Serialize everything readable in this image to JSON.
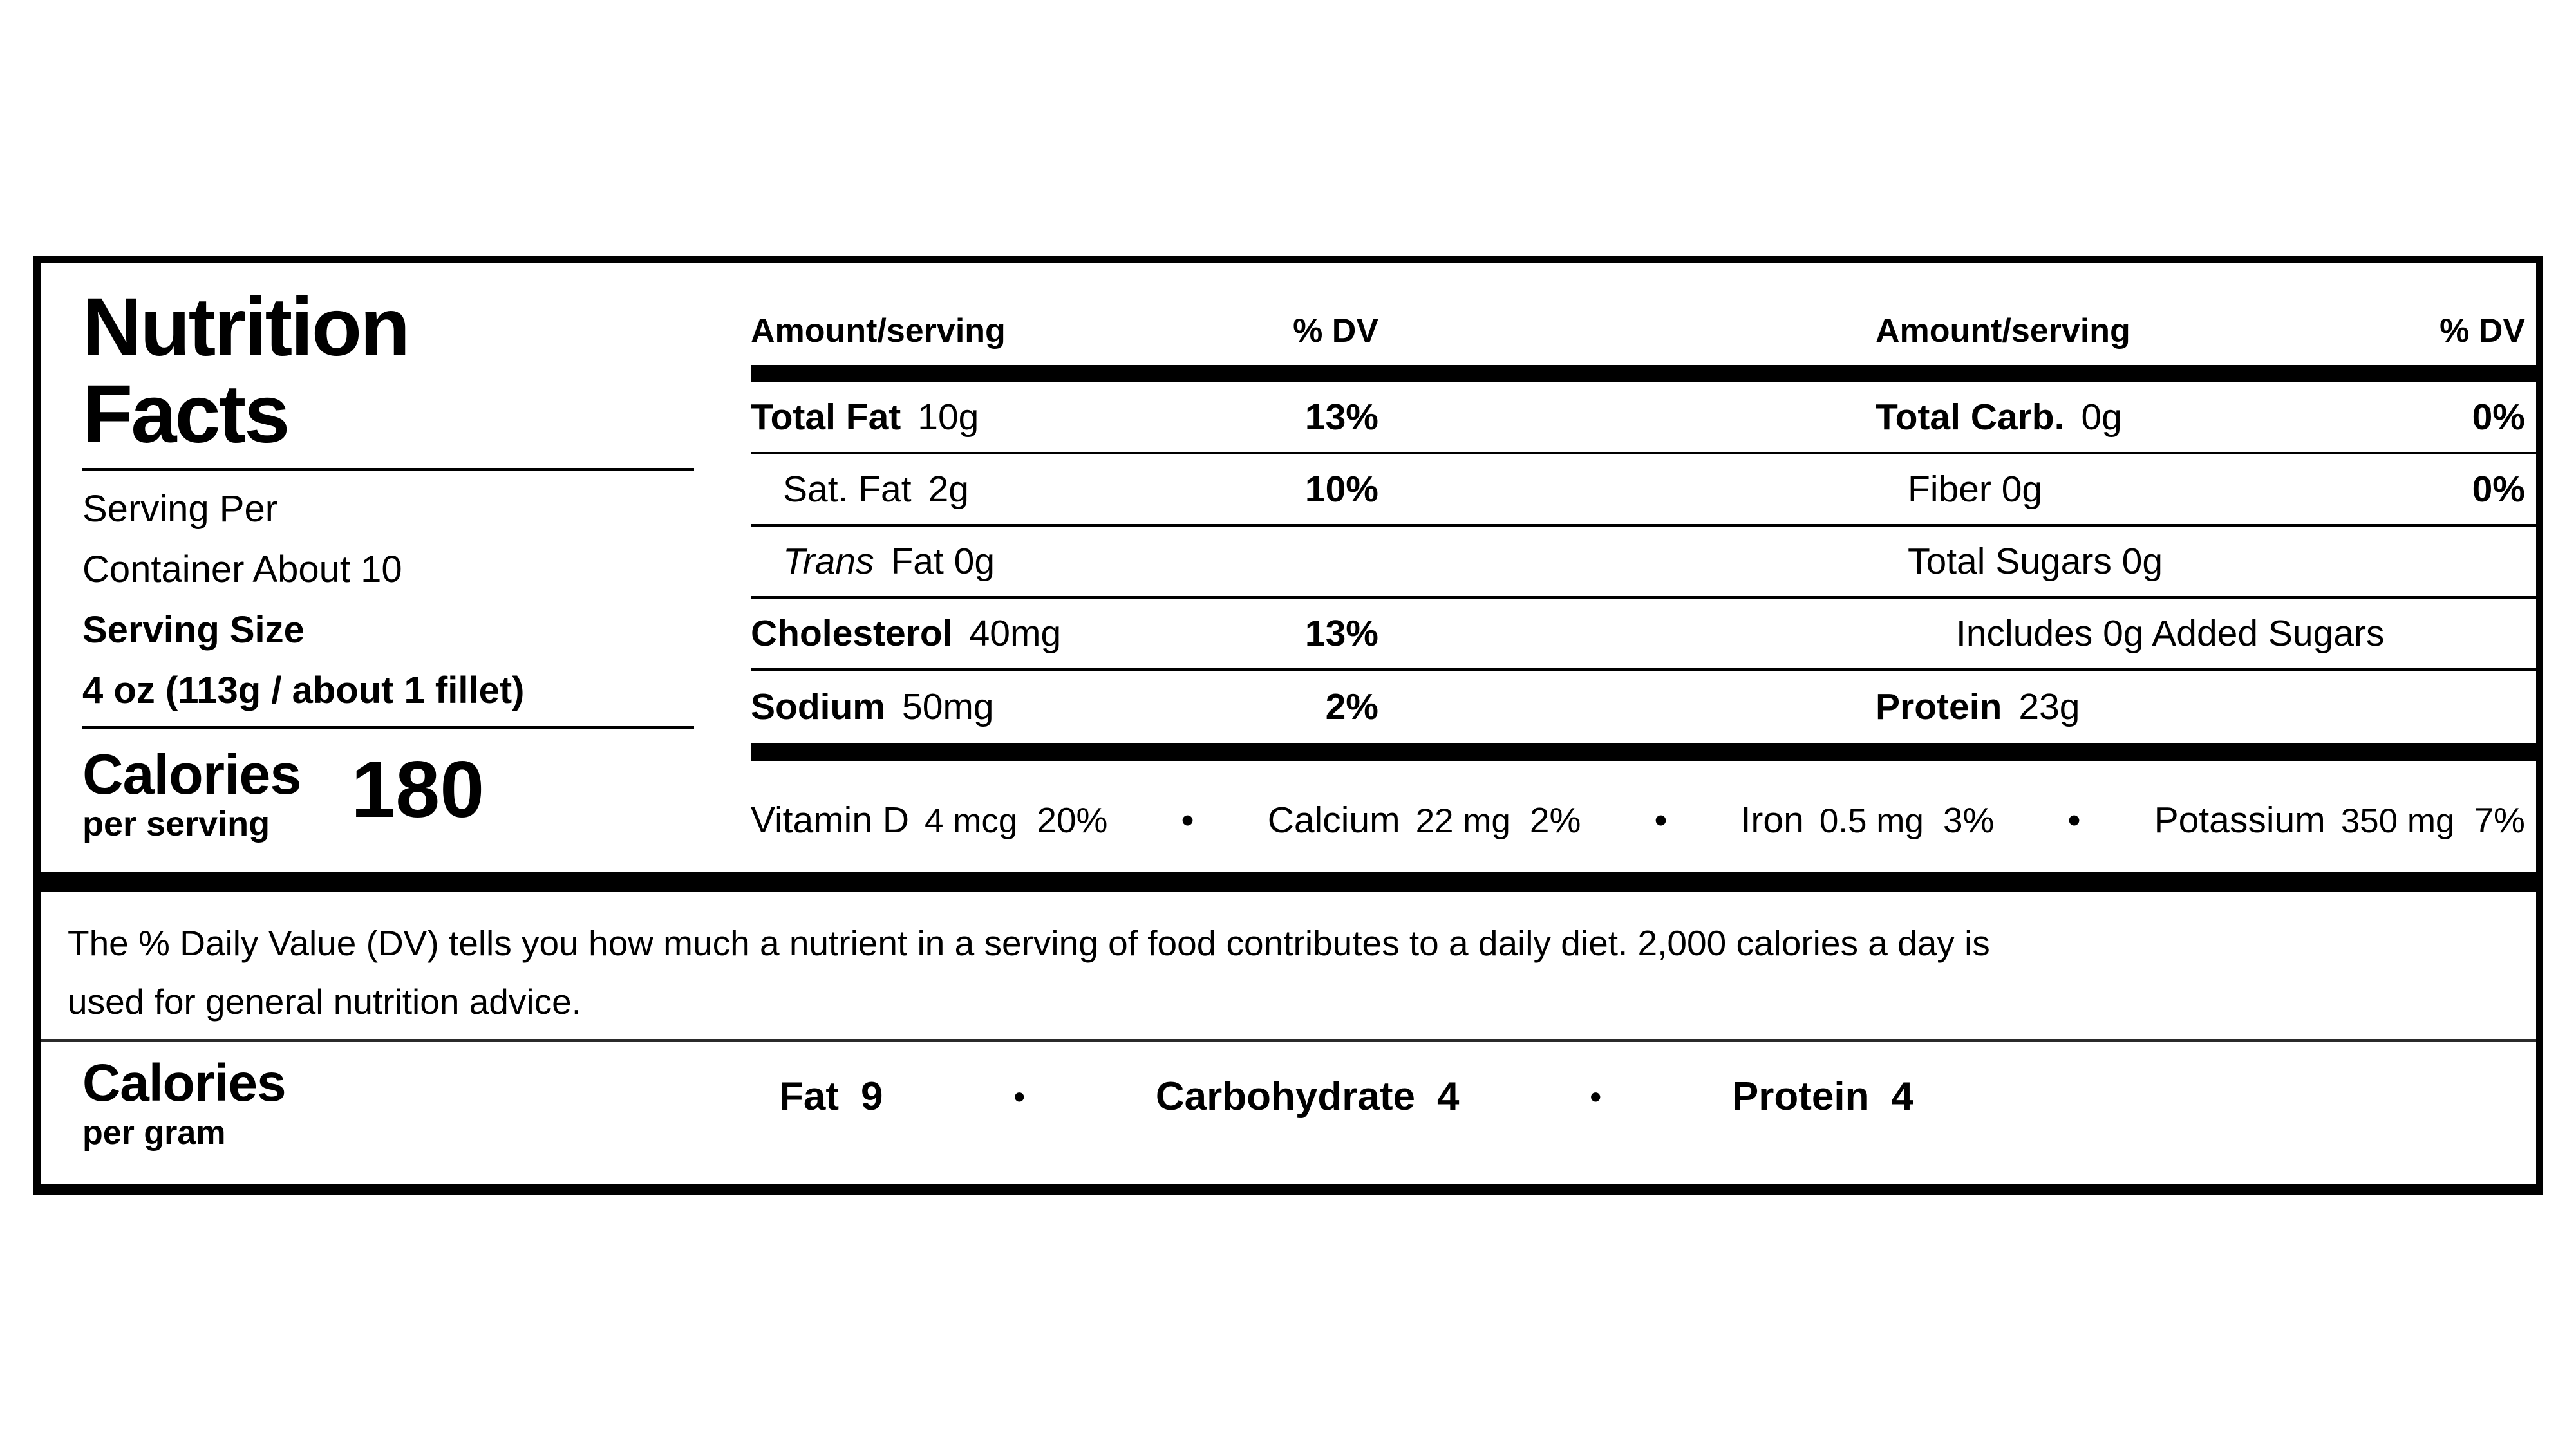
{
  "page": {
    "background": "#ffffff",
    "text_color": "#000000"
  },
  "title": {
    "line1": "Nutrition",
    "line2": "Facts"
  },
  "serving": {
    "lines": [
      {
        "text": "Serving Per",
        "bold": false
      },
      {
        "text": "Container About 10",
        "bold": false
      },
      {
        "text": "Serving Size",
        "bold": true
      },
      {
        "text": "4 oz (113g / about 1 fillet)",
        "bold": true
      }
    ]
  },
  "calories": {
    "label": "Calories",
    "sublabel": "per serving",
    "value": "180"
  },
  "nutrient_table": {
    "left_column": {
      "header_amount": "Amount/serving",
      "header_dv": "% DV",
      "rows": [
        {
          "name": "Total Fat",
          "amount": "10g",
          "dv": "13%",
          "bold": true,
          "italic": false,
          "indent": 0
        },
        {
          "name": "Sat. Fat",
          "amount": "2g",
          "dv": "10%",
          "bold": false,
          "italic": false,
          "indent": 1
        },
        {
          "name": "Trans",
          "amount": "Fat 0g",
          "dv": "",
          "bold": false,
          "italic": true,
          "indent": 1
        },
        {
          "name": "Cholesterol",
          "amount": "40mg",
          "dv": "13%",
          "bold": true,
          "italic": false,
          "indent": 0
        },
        {
          "name": "Sodium",
          "amount": "50mg",
          "dv": "2%",
          "bold": true,
          "italic": false,
          "indent": 0
        }
      ]
    },
    "right_column": {
      "header_amount": "Amount/serving",
      "header_dv": "% DV",
      "rows": [
        {
          "name": "Total Carb.",
          "amount": "0g",
          "dv": "0%",
          "bold": true,
          "italic": false,
          "indent": 0
        },
        {
          "name": "Fiber 0g",
          "amount": "",
          "dv": "0%",
          "bold": false,
          "italic": false,
          "indent": 1
        },
        {
          "name": "Total Sugars 0g",
          "amount": "",
          "dv": "",
          "bold": false,
          "italic": false,
          "indent": 1
        },
        {
          "name": "Includes 0g Added Sugars",
          "amount": "",
          "dv": "",
          "bold": false,
          "italic": false,
          "indent": 2
        },
        {
          "name": "Protein",
          "amount": "23g",
          "dv": "",
          "bold": true,
          "italic": false,
          "indent": 0
        }
      ]
    }
  },
  "vitamins": {
    "separator": "•",
    "items": [
      {
        "name": "Vitamin D",
        "amount": "4 mcg",
        "dv": "20%"
      },
      {
        "name": "Calcium",
        "amount": "22 mg",
        "dv": "2%"
      },
      {
        "name": "Iron",
        "amount": "0.5 mg",
        "dv": "3%"
      },
      {
        "name": "Potassium",
        "amount": "350 mg",
        "dv": "7%"
      }
    ]
  },
  "footnote": {
    "lines": [
      "The % Daily Value (DV) tells you how much a nutrient in a serving of food contributes to a daily diet. 2,000 calories a day is",
      "used for general nutrition advice."
    ]
  },
  "calories_per_gram": {
    "label": "Calories",
    "sublabel": "per gram",
    "separator": "•",
    "items": [
      {
        "name": "Fat",
        "value": "9"
      },
      {
        "name": "Carbohydrate",
        "value": "4"
      },
      {
        "name": "Protein",
        "value": "4"
      }
    ]
  }
}
